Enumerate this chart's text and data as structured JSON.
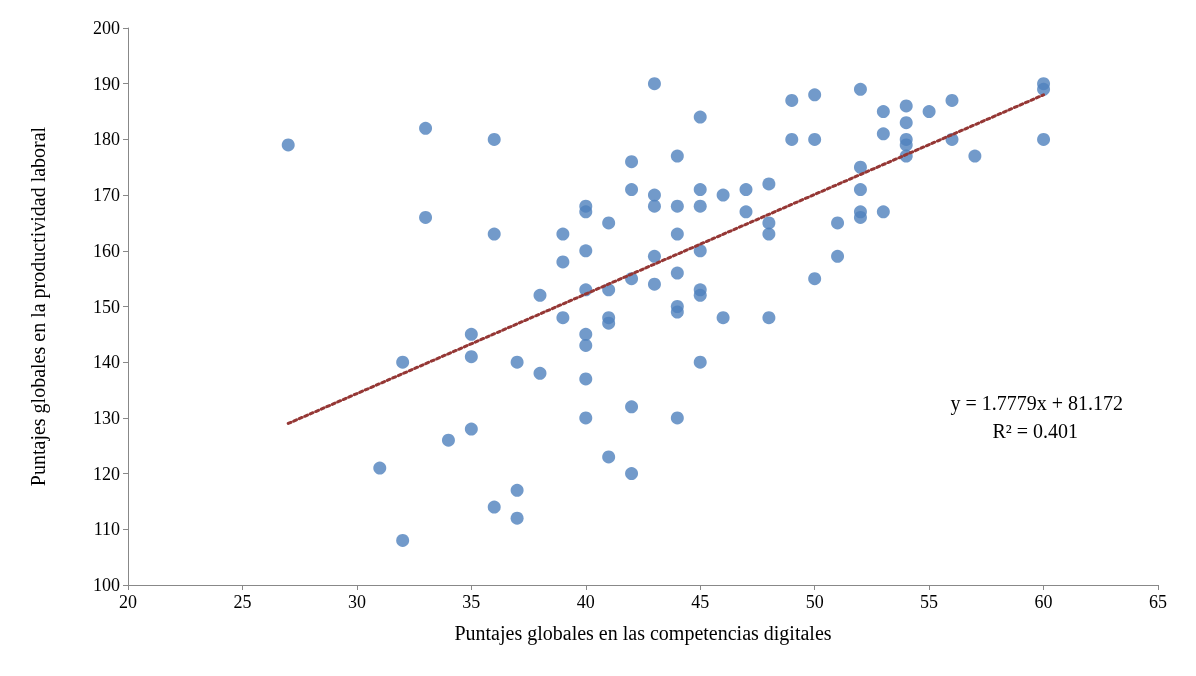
{
  "chart_data": {
    "type": "scatter",
    "xlabel": "Puntajes globales en las competencias digitales",
    "ylabel": "Puntajes globales en la productividad laboral",
    "xlim": [
      20,
      65
    ],
    "xticks": [
      20,
      25,
      30,
      35,
      40,
      45,
      50,
      55,
      60,
      65
    ],
    "ylim": [
      100,
      200
    ],
    "yticks": [
      100,
      110,
      120,
      130,
      140,
      150,
      160,
      170,
      180,
      190,
      200
    ],
    "grid": false,
    "marker": "circle",
    "annotations": [
      "y = 1.7779x + 81.172",
      "R² = 0.401"
    ],
    "series": [
      {
        "color": "#4f81bd",
        "x": [
          27,
          31,
          32,
          32,
          33,
          33,
          34,
          35,
          35,
          35,
          36,
          36,
          36,
          37,
          37,
          37,
          38,
          38,
          39,
          39,
          39,
          40,
          40,
          40,
          40,
          40,
          40,
          40,
          40,
          41,
          41,
          41,
          41,
          41,
          42,
          42,
          42,
          42,
          42,
          43,
          43,
          43,
          43,
          43,
          44,
          44,
          44,
          44,
          44,
          44,
          44,
          45,
          45,
          45,
          45,
          45,
          45,
          45,
          46,
          46,
          47,
          47,
          48,
          48,
          48,
          48,
          49,
          49,
          50,
          50,
          50,
          51,
          51,
          52,
          52,
          52,
          52,
          52,
          53,
          53,
          53,
          54,
          54,
          54,
          54,
          54,
          55,
          56,
          56,
          57,
          60,
          60,
          60
        ],
        "values": [
          179,
          121,
          108,
          140,
          182,
          166,
          126,
          145,
          141,
          128,
          180,
          163,
          114,
          140,
          117,
          112,
          152,
          138,
          163,
          158,
          148,
          168,
          167,
          160,
          153,
          145,
          143,
          137,
          130,
          165,
          153,
          148,
          147,
          123,
          176,
          171,
          155,
          132,
          120,
          190,
          170,
          168,
          159,
          154,
          177,
          168,
          163,
          156,
          150,
          149,
          130,
          184,
          171,
          168,
          160,
          153,
          152,
          140,
          170,
          148,
          171,
          167,
          172,
          165,
          163,
          148,
          187,
          180,
          188,
          180,
          155,
          165,
          159,
          189,
          175,
          171,
          167,
          166,
          185,
          181,
          167,
          186,
          183,
          180,
          179,
          177,
          185,
          187,
          180,
          177,
          190,
          189,
          180
        ]
      },
      {
        "type": "line",
        "color": "#953735",
        "line_style": "dotted",
        "marker": "none",
        "x": [
          27,
          60
        ],
        "values": [
          129,
          188
        ]
      }
    ]
  }
}
